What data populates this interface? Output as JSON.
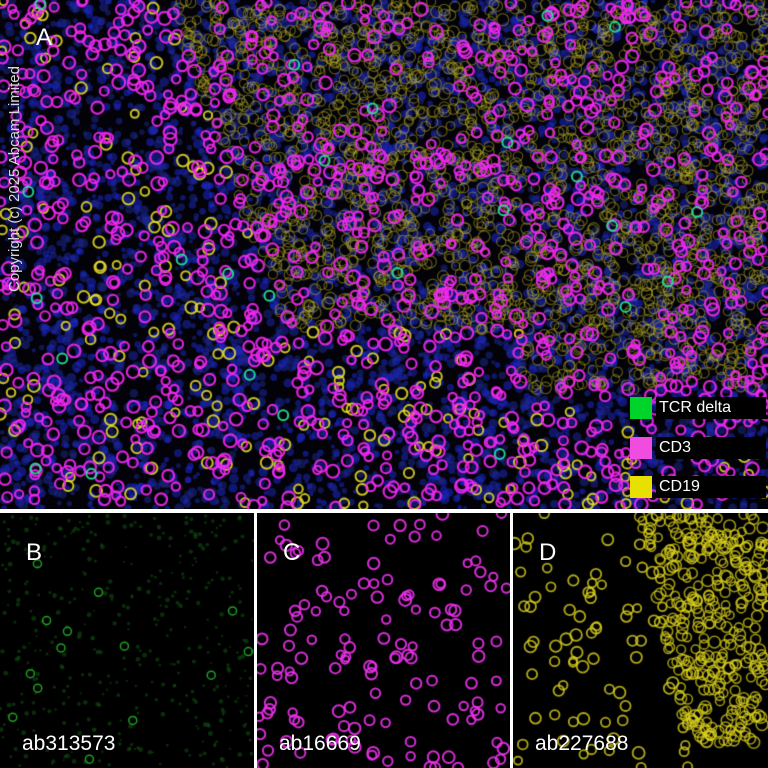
{
  "watermark": "Copyright (c) 2025 Abcam Limited",
  "panels": [
    {
      "label": "A",
      "channels": [
        "green",
        "magenta",
        "yellow",
        "blue"
      ]
    },
    {
      "label": "B",
      "antibody": "ab313573",
      "channel_color": "#1fd41f"
    },
    {
      "label": "C",
      "antibody": "ab16669",
      "channel_color": "#e83ae8"
    },
    {
      "label": "D",
      "antibody": "ab227688",
      "channel_color": "#e6e01c"
    }
  ],
  "legend": [
    {
      "label": "TCR delta",
      "color": "#00d42a"
    },
    {
      "label": "CD3",
      "color": "#f04ce0"
    },
    {
      "label": "CD19",
      "color": "#e8e000"
    }
  ]
}
